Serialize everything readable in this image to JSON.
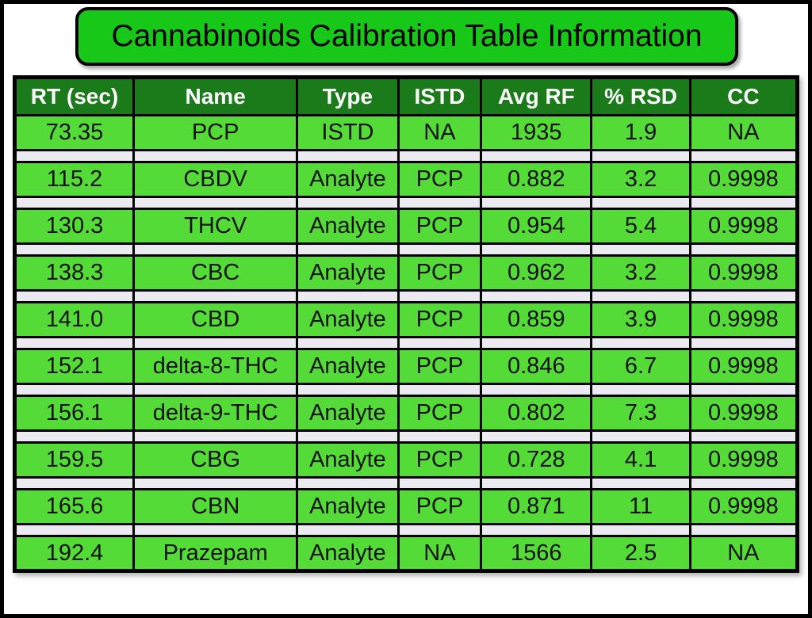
{
  "page": {
    "background_color": "#ffffff",
    "frame_border_color": "#000000"
  },
  "title_banner": {
    "text": "Cannabinoids Calibration Table Information",
    "fill_color": "#18c818",
    "border_color": "#000000",
    "text_color": "#000000"
  },
  "table": {
    "header": {
      "bg_color": "#1b7b1b",
      "text_color": "#ffffff",
      "columns": [
        "RT (sec)",
        "Name",
        "Type",
        "ISTD",
        "Avg RF",
        "% RSD",
        "CC"
      ]
    },
    "style": {
      "row_bg_color": "#55db38",
      "spacer_bg_color": "#eaeaf0",
      "grid_color": "#000000",
      "cell_text_color": "#111111"
    },
    "rows": [
      [
        "73.35",
        "PCP",
        "ISTD",
        "NA",
        "1935",
        "1.9",
        "NA"
      ],
      [
        "115.2",
        "CBDV",
        "Analyte",
        "PCP",
        "0.882",
        "3.2",
        "0.9998"
      ],
      [
        "130.3",
        "THCV",
        "Analyte",
        "PCP",
        "0.954",
        "5.4",
        "0.9998"
      ],
      [
        "138.3",
        "CBC",
        "Analyte",
        "PCP",
        "0.962",
        "3.2",
        "0.9998"
      ],
      [
        "141.0",
        "CBD",
        "Analyte",
        "PCP",
        "0.859",
        "3.9",
        "0.9998"
      ],
      [
        "152.1",
        "delta-8-THC",
        "Analyte",
        "PCP",
        "0.846",
        "6.7",
        "0.9998"
      ],
      [
        "156.1",
        "delta-9-THC",
        "Analyte",
        "PCP",
        "0.802",
        "7.3",
        "0.9998"
      ],
      [
        "159.5",
        "CBG",
        "Analyte",
        "PCP",
        "0.728",
        "4.1",
        "0.9998"
      ],
      [
        "165.6",
        "CBN",
        "Analyte",
        "PCP",
        "0.871",
        "11",
        "0.9998"
      ],
      [
        "192.4",
        "Prazepam",
        "Analyte",
        "NA",
        "1566",
        "2.5",
        "NA"
      ]
    ]
  },
  "chart_data": {
    "type": "table",
    "title": "Cannabinoids Calibration Table Information",
    "columns": [
      "RT (sec)",
      "Name",
      "Type",
      "ISTD",
      "Avg RF",
      "% RSD",
      "CC"
    ],
    "rows": [
      [
        "73.35",
        "PCP",
        "ISTD",
        "NA",
        "1935",
        "1.9",
        "NA"
      ],
      [
        "115.2",
        "CBDV",
        "Analyte",
        "PCP",
        "0.882",
        "3.2",
        "0.9998"
      ],
      [
        "130.3",
        "THCV",
        "Analyte",
        "PCP",
        "0.954",
        "5.4",
        "0.9998"
      ],
      [
        "138.3",
        "CBC",
        "Analyte",
        "PCP",
        "0.962",
        "3.2",
        "0.9998"
      ],
      [
        "141.0",
        "CBD",
        "Analyte",
        "PCP",
        "0.859",
        "3.9",
        "0.9998"
      ],
      [
        "152.1",
        "delta-8-THC",
        "Analyte",
        "PCP",
        "0.846",
        "6.7",
        "0.9998"
      ],
      [
        "156.1",
        "delta-9-THC",
        "Analyte",
        "PCP",
        "0.802",
        "7.3",
        "0.9998"
      ],
      [
        "159.5",
        "CBG",
        "Analyte",
        "PCP",
        "0.728",
        "4.1",
        "0.9998"
      ],
      [
        "165.6",
        "CBN",
        "Analyte",
        "PCP",
        "0.871",
        "11",
        "0.9998"
      ],
      [
        "192.4",
        "Prazepam",
        "Analyte",
        "NA",
        "1566",
        "2.5",
        "NA"
      ]
    ]
  }
}
